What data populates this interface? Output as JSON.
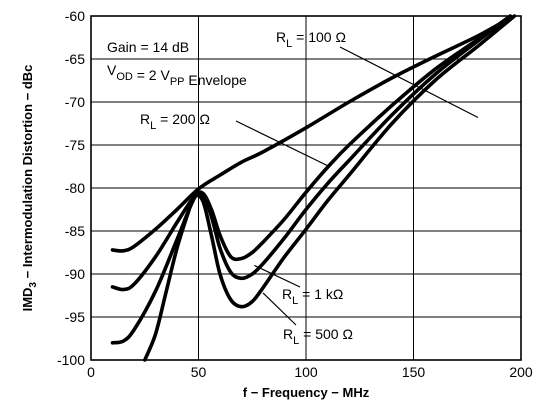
{
  "chart_data": {
    "type": "line",
    "xlabel": "f − Frequency − MHz",
    "ylabel": "IMD₃ − Intermodulation Distortion − dBc",
    "xlim": [
      0,
      200
    ],
    "ylim": [
      -100,
      -60
    ],
    "x_ticks": [
      0,
      50,
      100,
      150,
      200
    ],
    "y_ticks": [
      -60,
      -65,
      -70,
      -75,
      -80,
      -85,
      -90,
      -95,
      -100
    ],
    "x_tick_labels": [
      "0",
      "50",
      "100",
      "150",
      "200"
    ],
    "y_tick_labels": [
      "-60",
      "-65",
      "-70",
      "-75",
      "-80",
      "-85",
      "-90",
      "-95",
      "-100"
    ],
    "grid": true,
    "conditions": [
      "Gain = 14 dB",
      "V_OD = 2 V_PP Envelope"
    ],
    "series": [
      {
        "name": "R_L = 100 Ω",
        "x": [
          10,
          15,
          20,
          30,
          40,
          50,
          60,
          70,
          80,
          100,
          120,
          140,
          160,
          180,
          195
        ],
        "y": [
          -87.2,
          -87.3,
          -86.8,
          -84.8,
          -82.5,
          -80.1,
          -78.5,
          -77.0,
          -75.8,
          -73.0,
          -70.0,
          -67.2,
          -64.7,
          -62.3,
          -60.2
        ]
      },
      {
        "name": "R_L = 200 Ω",
        "x": [
          10,
          15,
          20,
          30,
          40,
          48,
          52,
          56,
          60,
          65,
          70,
          75,
          80,
          90,
          100,
          110,
          120,
          140,
          160,
          180,
          195
        ],
        "y": [
          -91.5,
          -91.8,
          -91.2,
          -88.0,
          -84.0,
          -81.0,
          -80.6,
          -82.5,
          -85.5,
          -88.0,
          -88.2,
          -87.5,
          -86.3,
          -83.6,
          -80.5,
          -77.6,
          -75.0,
          -70.4,
          -66.2,
          -62.7,
          -60.0
        ]
      },
      {
        "name": "R_L = 1 kΩ",
        "x": [
          10,
          15,
          20,
          30,
          40,
          48,
          52,
          56,
          60,
          65,
          70,
          75,
          80,
          90,
          100,
          110,
          120,
          140,
          160,
          180,
          195
        ],
        "y": [
          -98.0,
          -97.8,
          -96.5,
          -92.0,
          -86.0,
          -81.2,
          -80.8,
          -83.3,
          -87.0,
          -89.8,
          -90.5,
          -90.0,
          -88.8,
          -85.8,
          -82.5,
          -79.5,
          -76.8,
          -71.5,
          -66.8,
          -62.9,
          -60.1
        ]
      },
      {
        "name": "R_L = 500 Ω",
        "x": [
          25,
          30,
          35,
          40,
          45,
          48,
          52,
          56,
          60,
          65,
          70,
          75,
          80,
          90,
          100,
          110,
          120,
          140,
          160,
          180,
          197
        ],
        "y": [
          -100.0,
          -97.0,
          -92.0,
          -87.0,
          -83.0,
          -81.0,
          -81.5,
          -85.5,
          -90.0,
          -93.0,
          -93.8,
          -93.2,
          -91.6,
          -88.0,
          -84.8,
          -81.5,
          -78.5,
          -72.5,
          -67.5,
          -63.5,
          -60.0
        ]
      }
    ],
    "labels": {
      "rl100": "R_L = 100 Ω",
      "rl200": "R_L = 200 Ω",
      "rl1k": "R_L = 1 kΩ",
      "rl500": "R_L = 500 Ω"
    }
  }
}
